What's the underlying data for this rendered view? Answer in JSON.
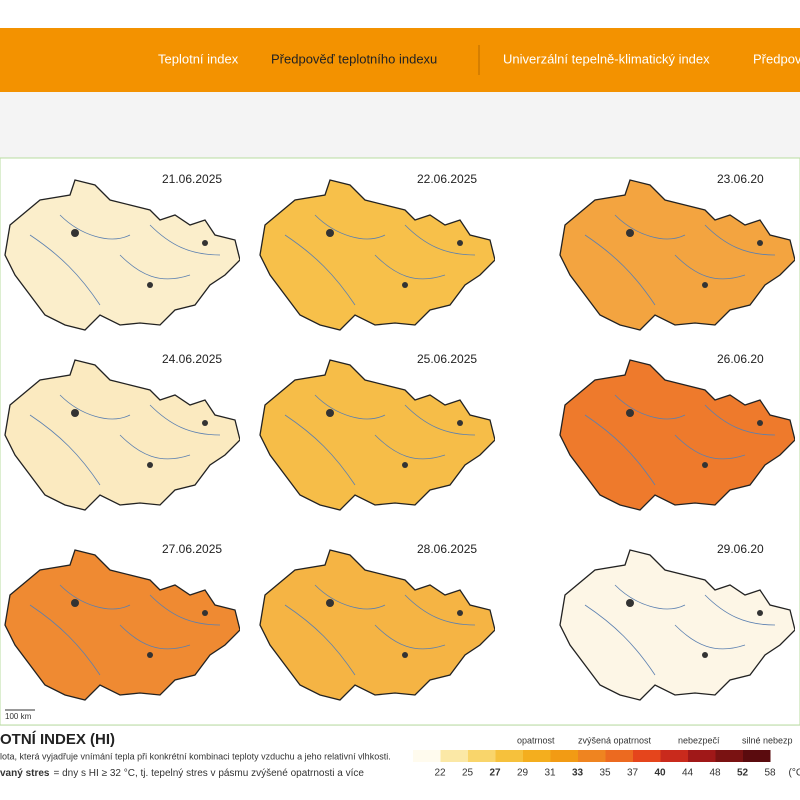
{
  "nav": {
    "items": [
      "Teplotní index",
      "Předpověď teplotního indexu",
      "Univerzální tepelně-klimatický index",
      "Předpov"
    ]
  },
  "maps": [
    {
      "date": "21.06.2025"
    },
    {
      "date": "22.06.2025"
    },
    {
      "date": "23.06.20"
    },
    {
      "date": "24.06.2025"
    },
    {
      "date": "25.06.2025"
    },
    {
      "date": "26.06.20"
    },
    {
      "date": "27.06.2025"
    },
    {
      "date": "28.06.2025"
    },
    {
      "date": "29.06.20"
    }
  ],
  "scale_bar": "100 km",
  "legend": {
    "title": "OTNÍ INDEX (HI)",
    "description": "lota, která vyjadřuje vnímání tepla při konkrétní kombinaci teploty vzduchu a jeho relativní vlhkosti.",
    "stress_term": "vaný stres",
    "stress_text": "= dny s HI ≥ 32 °C, tj. tepelný stres v pásmu zvýšené opatrnosti a více",
    "levels": [
      "opatrnost",
      "zvýšená opatrnost",
      "nebezpečí",
      "silné nebezp"
    ],
    "ticks": [
      {
        "label": "22",
        "bold": false
      },
      {
        "label": "25",
        "bold": false
      },
      {
        "label": "27",
        "bold": true
      },
      {
        "label": "29",
        "bold": false
      },
      {
        "label": "31",
        "bold": false
      },
      {
        "label": "33",
        "bold": true
      },
      {
        "label": "35",
        "bold": false
      },
      {
        "label": "37",
        "bold": false
      },
      {
        "label": "40",
        "bold": true
      },
      {
        "label": "44",
        "bold": false
      },
      {
        "label": "48",
        "bold": false
      },
      {
        "label": "52",
        "bold": true
      },
      {
        "label": "58",
        "bold": false
      },
      {
        "label": "(°C)",
        "bold": false
      }
    ]
  }
}
